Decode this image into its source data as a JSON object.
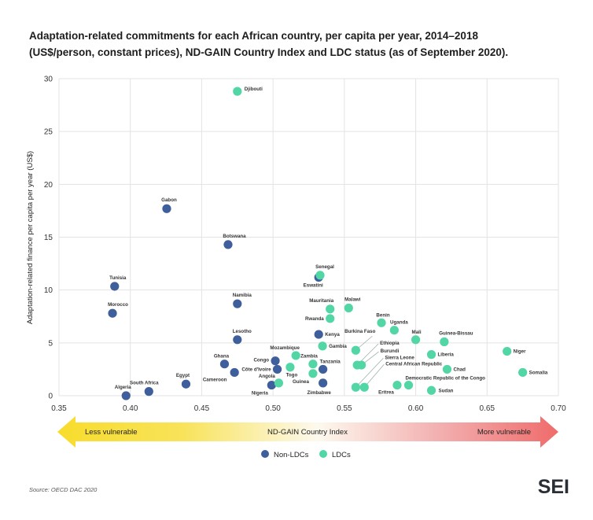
{
  "chart_data": {
    "type": "scatter",
    "title_lines": [
      "Adaptation-related commitments for each African country, per capita per year, 2014–2018",
      "(US$/person, constant prices), ND-GAIN Country Index and LDC status (as of September 2020)."
    ],
    "xlabel": "ND-GAIN Country Index",
    "ylabel": "Adaptation-related finance per capita per year (US$)",
    "xlim": [
      0.35,
      0.7
    ],
    "ylim": [
      0,
      30
    ],
    "xticks": [
      "0.35",
      "0.40",
      "0.45",
      "0.50",
      "0.55",
      "0.60",
      "0.65",
      "0.70"
    ],
    "yticks": [
      "0",
      "5",
      "10",
      "15",
      "20",
      "25",
      "30"
    ],
    "grid": true,
    "arrow_left_label": "Less vulnerable",
    "arrow_right_label": "More vulnerable",
    "legend_position": "bottom",
    "series": [
      {
        "name": "Non-LDCs",
        "color": "#3e5f9c",
        "points": [
          {
            "label": "Gabon",
            "x": 0.4255,
            "y": 17.7
          },
          {
            "label": "Botswana",
            "x": 0.4685,
            "y": 14.3
          },
          {
            "label": "Tunisia",
            "x": 0.389,
            "y": 10.35
          },
          {
            "label": "Morocco",
            "x": 0.3875,
            "y": 7.8
          },
          {
            "label": "Namibia",
            "x": 0.475,
            "y": 8.7
          },
          {
            "label": "Lesotho",
            "x": 0.475,
            "y": 5.3
          },
          {
            "label": "Eswatini",
            "x": 0.532,
            "y": 11.2
          },
          {
            "label": "Kenya",
            "x": 0.532,
            "y": 5.8
          },
          {
            "label": "Tanzania",
            "x": 0.535,
            "y": 2.5
          },
          {
            "label": "Zimbabwe",
            "x": 0.535,
            "y": 1.2
          },
          {
            "label": "Congo",
            "x": 0.5016,
            "y": 3.3
          },
          {
            "label": "Côte d'Ivoire",
            "x": 0.503,
            "y": 2.5
          },
          {
            "label": "Nigeria",
            "x": 0.499,
            "y": 1.0
          },
          {
            "label": "Ghana",
            "x": 0.466,
            "y": 3.0
          },
          {
            "label": "Cameroon",
            "x": 0.473,
            "y": 2.2
          },
          {
            "label": "Egypt",
            "x": 0.439,
            "y": 1.1
          },
          {
            "label": "South Africa",
            "x": 0.413,
            "y": 0.4
          },
          {
            "label": "Algeria",
            "x": 0.397,
            "y": 0.0
          }
        ]
      },
      {
        "name": "LDCs",
        "color": "#52d6a6",
        "points": [
          {
            "label": "Djibouti",
            "x": 0.475,
            "y": 28.8
          },
          {
            "label": "Senegal",
            "x": 0.533,
            "y": 11.4
          },
          {
            "label": "Mauritania",
            "x": 0.54,
            "y": 8.2
          },
          {
            "label": "Malawi",
            "x": 0.553,
            "y": 8.3
          },
          {
            "label": "Rwanda",
            "x": 0.54,
            "y": 7.3
          },
          {
            "label": "Gambia",
            "x": 0.5347,
            "y": 4.7
          },
          {
            "label": "Benin",
            "x": 0.576,
            "y": 6.9
          },
          {
            "label": "Uganda",
            "x": 0.585,
            "y": 6.2
          },
          {
            "label": "Mali",
            "x": 0.6,
            "y": 5.3
          },
          {
            "label": "Guinea-Bissau",
            "x": 0.62,
            "y": 5.1
          },
          {
            "label": "Burkina Faso",
            "x": 0.558,
            "y": 4.3
          },
          {
            "label": "Ethiopia",
            "x": 0.559,
            "y": 2.9
          },
          {
            "label": "Burundi",
            "x": 0.562,
            "y": 2.9
          },
          {
            "label": "Sierra Leone",
            "x": 0.558,
            "y": 0.8
          },
          {
            "label": "Central African Republic",
            "x": 0.564,
            "y": 0.8
          },
          {
            "label": "Eritrea",
            "x": 0.587,
            "y": 1.0
          },
          {
            "label": "Democratic Republic of the Congo",
            "x": 0.595,
            "y": 1.0
          },
          {
            "label": "Sudan",
            "x": 0.611,
            "y": 0.5
          },
          {
            "label": "Liberia",
            "x": 0.611,
            "y": 3.9
          },
          {
            "label": "Chad",
            "x": 0.622,
            "y": 2.5
          },
          {
            "label": "Niger",
            "x": 0.664,
            "y": 4.2
          },
          {
            "label": "Somalia",
            "x": 0.675,
            "y": 2.2
          },
          {
            "label": "Mozambique",
            "x": 0.516,
            "y": 3.8
          },
          {
            "label": "Togo",
            "x": 0.512,
            "y": 2.7
          },
          {
            "label": "Zambia",
            "x": 0.528,
            "y": 3.0
          },
          {
            "label": "Guinea",
            "x": 0.528,
            "y": 2.1
          },
          {
            "label": "Angola",
            "x": 0.504,
            "y": 1.2
          }
        ]
      }
    ]
  },
  "source": "Source: OECD DAC 2020",
  "logo": "SEI"
}
